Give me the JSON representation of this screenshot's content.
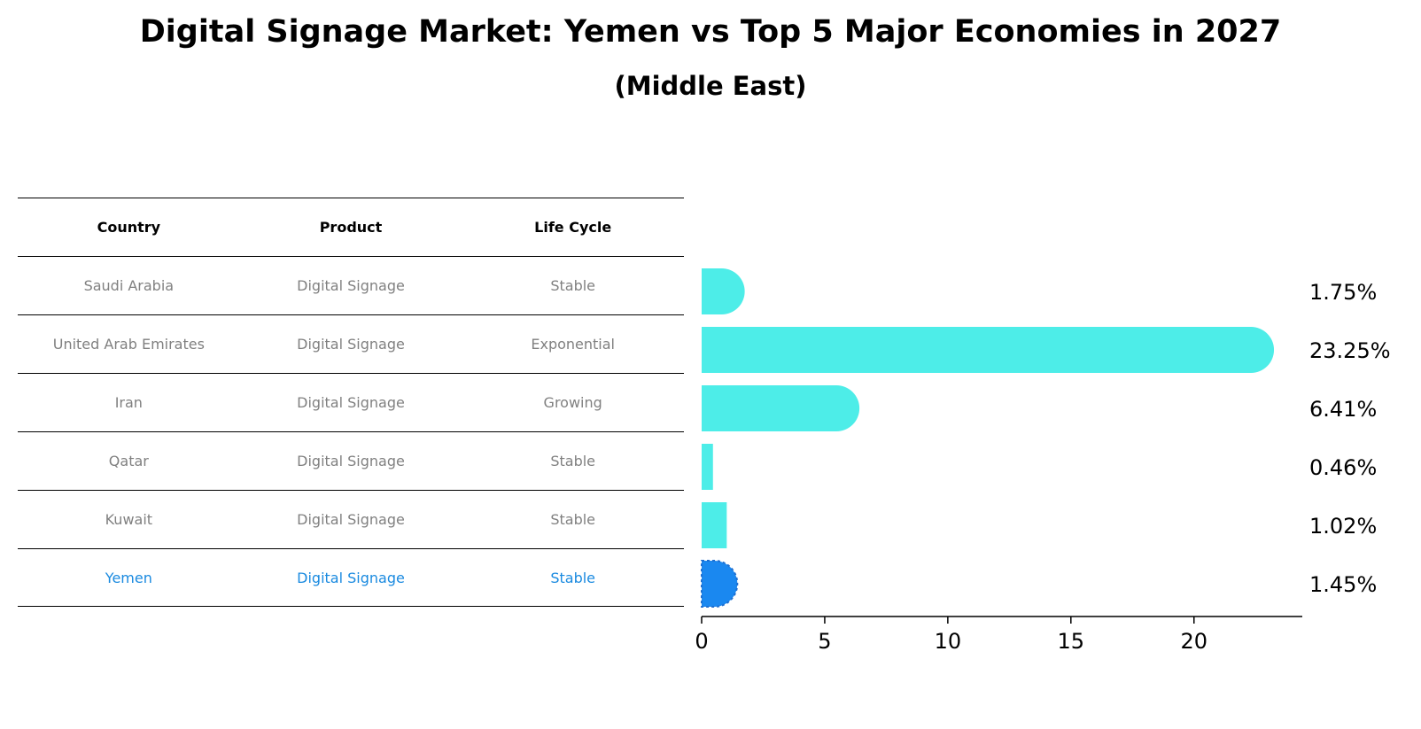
{
  "title": "Digital Signage Market: Yemen vs Top 5 Major Economies in 2027",
  "subtitle": "(Middle East)",
  "table": {
    "headers": [
      "Country",
      "Product",
      "Life Cycle"
    ],
    "rows": [
      [
        "Saudi Arabia",
        "Digital Signage",
        "Stable"
      ],
      [
        "United Arab Emirates",
        "Digital Signage",
        "Exponential"
      ],
      [
        "Iran",
        "Digital Signage",
        "Growing"
      ],
      [
        "Qatar",
        "Digital Signage",
        "Stable"
      ],
      [
        "Kuwait",
        "Digital Signage",
        "Stable"
      ],
      [
        "Yemen",
        "Digital Signage",
        "Stable"
      ]
    ]
  },
  "colors": {
    "bar": "#4dede8",
    "highlight_bar": "#1a88f0",
    "highlight_text": "#1a8ae0",
    "table_text": "#808080"
  },
  "chart_data": {
    "type": "bar",
    "orientation": "horizontal",
    "categories": [
      "Saudi Arabia",
      "United Arab Emirates",
      "Iran",
      "Qatar",
      "Kuwait",
      "Yemen"
    ],
    "values": [
      1.75,
      23.25,
      6.41,
      0.46,
      1.02,
      1.45
    ],
    "value_labels": [
      "1.75%",
      "23.25%",
      "6.41%",
      "0.46%",
      "1.02%",
      "1.45%"
    ],
    "highlight": "Yemen",
    "xlim": [
      0,
      24.4
    ],
    "xticks": [
      0,
      5,
      10,
      15,
      20
    ],
    "xlabel": "",
    "ylabel": ""
  }
}
